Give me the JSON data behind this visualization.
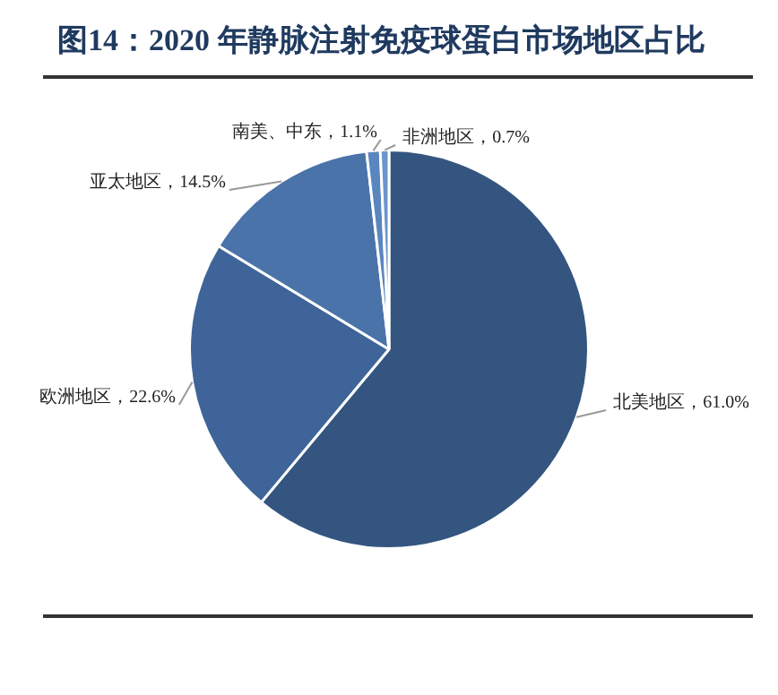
{
  "chart_data": {
    "type": "pie",
    "title": "图14：2020 年静脉注射免疫球蛋白市场地区占比",
    "categories": [
      "北美地区",
      "欧洲地区",
      "亚太地区",
      "南美、中东",
      "非洲地区"
    ],
    "values": [
      61.0,
      22.6,
      14.5,
      1.1,
      0.7
    ],
    "value_labels": [
      "61.0%",
      "22.6%",
      "14.5%",
      "1.1%",
      "0.7%"
    ],
    "colors": [
      "#34557f",
      "#3f6499",
      "#4a73aa",
      "#5a86bf",
      "#6b95cc"
    ],
    "legend": false
  }
}
